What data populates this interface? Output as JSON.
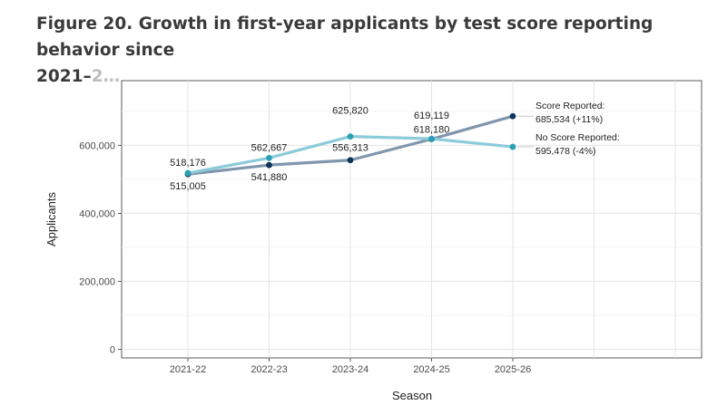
{
  "title": {
    "main": "Figure 20. Growth in first-year applicants by test score reporting behavior since",
    "line2": "2021–",
    "line2_faded": "2…"
  },
  "chart_data": {
    "type": "line",
    "xlabel": "Season",
    "ylabel": "Applicants",
    "categories": [
      "2021-22",
      "2022-23",
      "2023-24",
      "2024-25",
      "2025-26"
    ],
    "ylim": [
      -25000,
      790000
    ],
    "yticks": [
      0,
      200000,
      400000,
      600000
    ],
    "ytick_labels": [
      "0",
      "200,000",
      "400,000",
      "600,000"
    ],
    "grid": true,
    "series": [
      {
        "name": "Score Reported",
        "color": "#7f96ad",
        "marker_color": "#0d3559",
        "values": [
          515005,
          541880,
          556313,
          618180,
          685534
        ],
        "labels": [
          "515,005",
          "541,880",
          "556,313",
          "618,180",
          ""
        ],
        "end_label_line1": "Score Reported:",
        "end_label_line2": "685,534 (+11%)"
      },
      {
        "name": "No Score Reported",
        "color": "#8ccbd9",
        "marker_color": "#2a9fb6",
        "values": [
          518176,
          562667,
          625820,
          619119,
          595478
        ],
        "labels": [
          "518,176",
          "562,667",
          "625,820",
          "619,119",
          ""
        ],
        "end_label_line1": "No Score Reported:",
        "end_label_line2": "595,478 (-4%)"
      }
    ]
  }
}
